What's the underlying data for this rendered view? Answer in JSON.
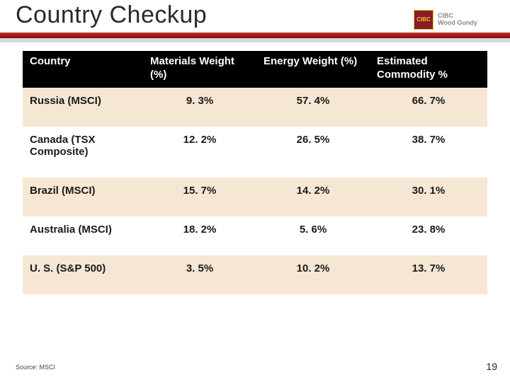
{
  "header": {
    "title": "Country Checkup",
    "logo_square_text": "CIBC",
    "logo_text_line1": "CIBC",
    "logo_text_line2": "Wood Gundy"
  },
  "table": {
    "columns": [
      "Country",
      "Materials Weight (%)",
      "Energy Weight (%)",
      "Estimated Commodity %"
    ],
    "rows": [
      {
        "country": "Russia (MSCI)",
        "materials": "9. 3%",
        "energy": "57. 4%",
        "commodity": "66. 7%"
      },
      {
        "country": "Canada (TSX Composite)",
        "materials": "12. 2%",
        "energy": "26. 5%",
        "commodity": "38. 7%"
      },
      {
        "country": "Brazil (MSCI)",
        "materials": "15. 7%",
        "energy": "14. 2%",
        "commodity": "30. 1%"
      },
      {
        "country": "Australia (MSCI)",
        "materials": "18. 2%",
        "energy": "5. 6%",
        "commodity": "23. 8%"
      },
      {
        "country": "U. S. (S&P 500)",
        "materials": "3. 5%",
        "energy": "10. 2%",
        "commodity": "13. 7%"
      }
    ],
    "header_bg": "#000000",
    "header_fg": "#ffffff",
    "row_alt_bg": "#f6e7d4",
    "row_plain_bg": "#ffffff",
    "font_size": 15
  },
  "footer": {
    "source": "Source: MSCI",
    "page_number": "19"
  },
  "colors": {
    "red_bar_top": "#cc2a2a",
    "red_bar_bottom": "#7a0f0f",
    "grey_bar": "#d9d9d9",
    "logo_bg": "#8a1d22",
    "logo_border": "#f0c040"
  }
}
